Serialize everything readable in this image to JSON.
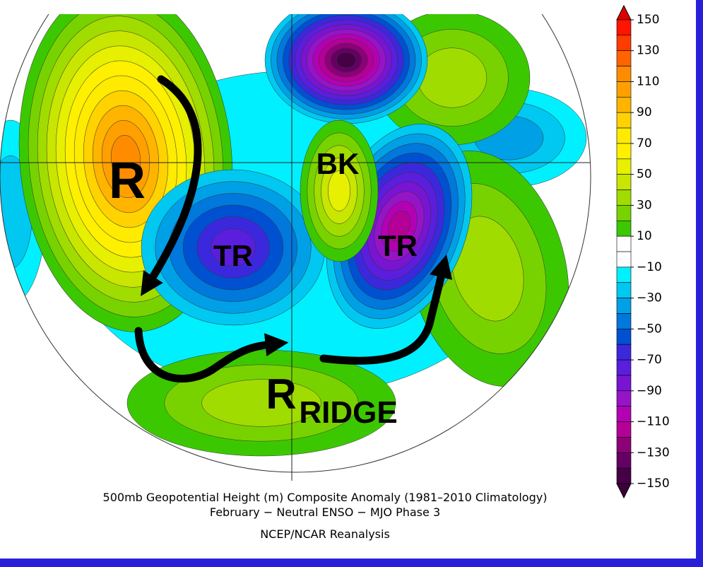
{
  "map": {
    "labels": [
      "R",
      "TR",
      "BK",
      "TR",
      "R",
      "RIDGE"
    ],
    "caption": [
      "500mb Geopotential Height (m) Composite Anomaly (1981–2010 Climatology)",
      "February − Neutral ENSO − MJO Phase 3",
      "NCEP/NCAR Reanalysis"
    ]
  },
  "colorbar": {
    "ticks": [
      150,
      130,
      110,
      90,
      70,
      50,
      30,
      10,
      {
        "value": -10,
        "label": "−10"
      },
      {
        "value": -30,
        "label": "−30"
      },
      {
        "value": -50,
        "label": "−50"
      },
      {
        "value": -70,
        "label": "−70"
      },
      {
        "value": -90,
        "label": "−90"
      },
      {
        "value": -110,
        "label": "−110"
      },
      {
        "value": -130,
        "label": "−130"
      },
      {
        "value": -150,
        "label": "−150"
      }
    ],
    "colors": [
      "#e00000",
      "#ff1400",
      "#ff3c00",
      "#ff6400",
      "#ff8c00",
      "#ffa000",
      "#ffb400",
      "#ffd200",
      "#ffeb00",
      "#fff000",
      "#e6f000",
      "#c8e600",
      "#a0dc00",
      "#78d200",
      "#3cc800",
      "#ffffff",
      "#ffffff",
      "#00f0ff",
      "#00c8f0",
      "#00a0e6",
      "#0078dc",
      "#0050d2",
      "#3c28dc",
      "#5a1edc",
      "#7814d2",
      "#9614c8",
      "#b400b4",
      "#b40096",
      "#8c0078",
      "#640064",
      "#460046",
      "#3c003c"
    ]
  }
}
